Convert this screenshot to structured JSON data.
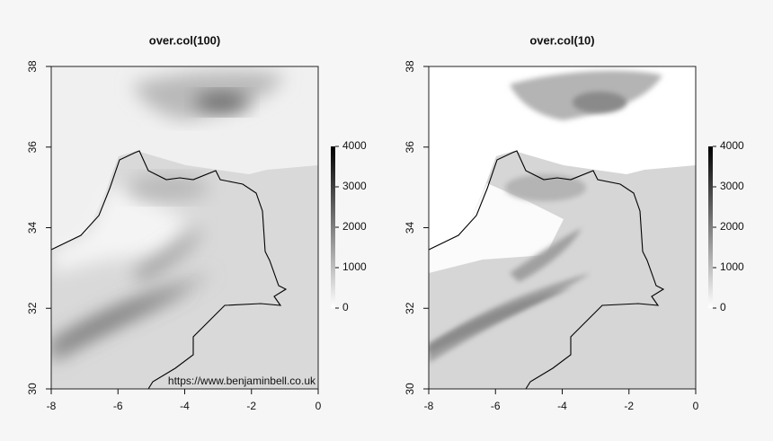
{
  "panels": [
    {
      "title": "over.col(100)",
      "xlim": [
        -8,
        0
      ],
      "ylim": [
        30,
        38
      ],
      "xticks": [
        -8,
        -6,
        -4,
        -2,
        0
      ],
      "yticks": [
        30,
        32,
        34,
        36,
        38
      ],
      "legend": {
        "lim": [
          0,
          4000
        ],
        "ticks": [
          0,
          1000,
          2000,
          3000,
          4000
        ]
      }
    },
    {
      "title": "over.col(10)",
      "xlim": [
        -8,
        0
      ],
      "ylim": [
        30,
        38
      ],
      "xticks": [
        -8,
        -6,
        -4,
        -2,
        0
      ],
      "yticks": [
        30,
        32,
        34,
        36,
        38
      ],
      "legend": {
        "lim": [
          0,
          4000
        ],
        "ticks": [
          0,
          1000,
          2000,
          3000,
          4000
        ]
      }
    }
  ],
  "watermark": "https://www.benjaminbell.co.uk"
}
